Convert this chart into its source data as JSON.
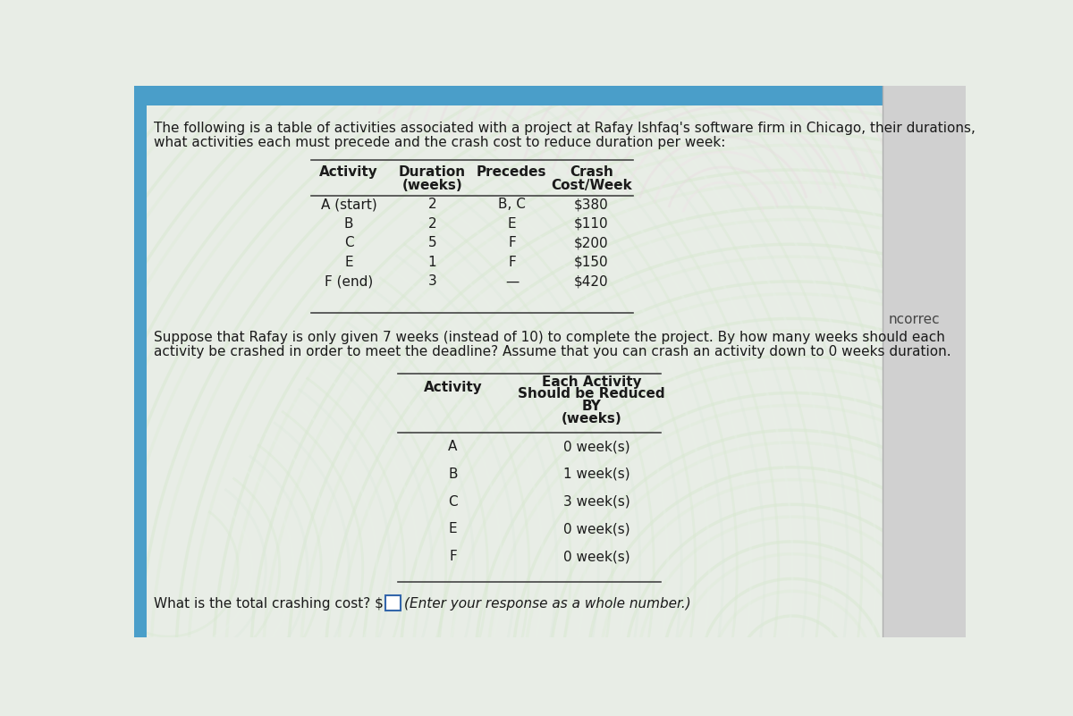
{
  "bg_color": "#e8ede6",
  "text_color": "#1a1a1a",
  "intro_text_line1": "The following is a table of activities associated with a project at Rafay Ishfaq's software firm in Chicago, their durations,",
  "intro_text_line2": "what activities each must precede and the crash cost to reduce duration per week:",
  "table1": {
    "col_headers_line1": [
      "Activity",
      "Duration",
      "Precedes",
      "Crash"
    ],
    "col_headers_line2": [
      "",
      "(weeks)",
      "",
      "Cost/Week"
    ],
    "rows": [
      [
        "A (start)",
        "2",
        "B, C",
        "$380"
      ],
      [
        "B",
        "2",
        "E",
        "$110"
      ],
      [
        "C",
        "5",
        "F",
        "$200"
      ],
      [
        "E",
        "1",
        "F",
        "$150"
      ],
      [
        "F (end)",
        "3",
        "—",
        "$420"
      ]
    ]
  },
  "middle_text_line1": "Suppose that Rafay is only given 7 weeks (instead of 10) to complete the project. By how many weeks should each",
  "middle_text_line2": "activity be crashed in order to meet the deadline? Assume that you can crash an activity down to 0 weeks duration.",
  "table2": {
    "col1_header": "Activity",
    "col2_header_lines": [
      "Each Activity",
      "Should be Reduced",
      "BY",
      "(weeks)"
    ],
    "rows": [
      [
        "A",
        "0 week(s)"
      ],
      [
        "B",
        "1 week(s)"
      ],
      [
        "C",
        "3 week(s)"
      ],
      [
        "E",
        "0 week(s)"
      ],
      [
        "F",
        "0 week(s)"
      ]
    ]
  },
  "bottom_text_prefix": "What is the total crashing cost? $",
  "bottom_text_suffix": "(Enter your response as a whole number.)",
  "sidebar_blue": "#4a9ec9",
  "sidebar_right_bg": "#d0d0d0",
  "top_bar_blue": "#4a9ec9",
  "ncorrec_text": "ncorrec",
  "wave_color1": "#e8ede6",
  "wave_color2": "#dde8dd"
}
